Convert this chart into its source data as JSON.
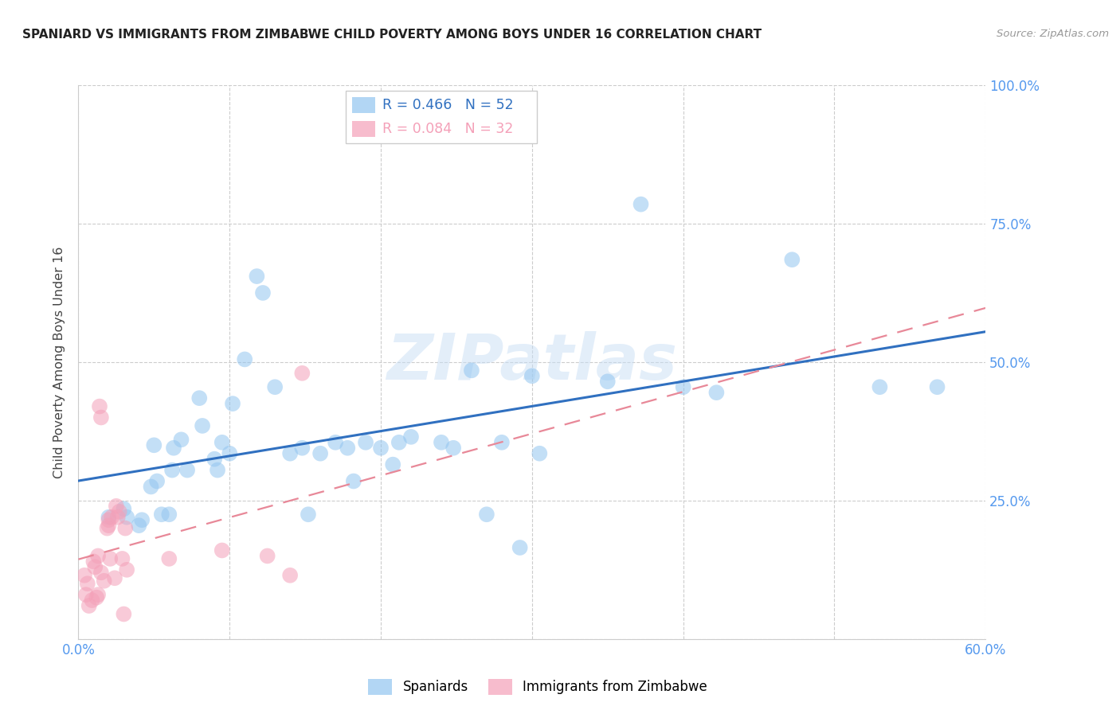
{
  "title": "SPANIARD VS IMMIGRANTS FROM ZIMBABWE CHILD POVERTY AMONG BOYS UNDER 16 CORRELATION CHART",
  "source": "Source: ZipAtlas.com",
  "ylabel": "Child Poverty Among Boys Under 16",
  "xlim": [
    0.0,
    0.6
  ],
  "ylim": [
    0.0,
    1.0
  ],
  "xticks": [
    0.0,
    0.1,
    0.2,
    0.3,
    0.4,
    0.5,
    0.6
  ],
  "yticks": [
    0.0,
    0.25,
    0.5,
    0.75,
    1.0
  ],
  "ytick_labels": [
    "",
    "25.0%",
    "50.0%",
    "75.0%",
    "100.0%"
  ],
  "xtick_labels": [
    "0.0%",
    "",
    "",
    "",
    "",
    "",
    "60.0%"
  ],
  "legend_label_blue": "Spaniards",
  "legend_label_pink": "Immigrants from Zimbabwe",
  "blue_color": "#92c5f0",
  "pink_color": "#f4a0b8",
  "blue_line_color": "#3070c0",
  "pink_line_color": "#e88898",
  "watermark": "ZIPatlas",
  "blue_r": "0.466",
  "blue_n": "52",
  "pink_r": "0.084",
  "pink_n": "32",
  "blue_scatter_x": [
    0.02,
    0.03,
    0.032,
    0.04,
    0.042,
    0.048,
    0.05,
    0.052,
    0.055,
    0.06,
    0.062,
    0.063,
    0.068,
    0.072,
    0.08,
    0.082,
    0.09,
    0.092,
    0.095,
    0.1,
    0.102,
    0.11,
    0.118,
    0.122,
    0.13,
    0.14,
    0.148,
    0.152,
    0.16,
    0.17,
    0.178,
    0.182,
    0.19,
    0.2,
    0.208,
    0.212,
    0.22,
    0.24,
    0.248,
    0.26,
    0.27,
    0.28,
    0.292,
    0.3,
    0.305,
    0.35,
    0.372,
    0.4,
    0.422,
    0.472,
    0.53,
    0.568
  ],
  "blue_scatter_y": [
    0.22,
    0.235,
    0.22,
    0.205,
    0.215,
    0.275,
    0.35,
    0.285,
    0.225,
    0.225,
    0.305,
    0.345,
    0.36,
    0.305,
    0.435,
    0.385,
    0.325,
    0.305,
    0.355,
    0.335,
    0.425,
    0.505,
    0.655,
    0.625,
    0.455,
    0.335,
    0.345,
    0.225,
    0.335,
    0.355,
    0.345,
    0.285,
    0.355,
    0.345,
    0.315,
    0.355,
    0.365,
    0.355,
    0.345,
    0.485,
    0.225,
    0.355,
    0.165,
    0.475,
    0.335,
    0.465,
    0.785,
    0.455,
    0.445,
    0.685,
    0.455,
    0.455
  ],
  "pink_scatter_x": [
    0.004,
    0.005,
    0.006,
    0.007,
    0.009,
    0.01,
    0.011,
    0.012,
    0.013,
    0.013,
    0.014,
    0.015,
    0.015,
    0.017,
    0.019,
    0.02,
    0.02,
    0.021,
    0.022,
    0.024,
    0.025,
    0.026,
    0.027,
    0.029,
    0.03,
    0.031,
    0.032,
    0.06,
    0.095,
    0.125,
    0.14,
    0.148
  ],
  "pink_scatter_y": [
    0.115,
    0.08,
    0.1,
    0.06,
    0.07,
    0.14,
    0.13,
    0.075,
    0.08,
    0.15,
    0.42,
    0.4,
    0.12,
    0.105,
    0.2,
    0.205,
    0.215,
    0.145,
    0.22,
    0.11,
    0.24,
    0.22,
    0.23,
    0.145,
    0.045,
    0.2,
    0.125,
    0.145,
    0.16,
    0.15,
    0.115,
    0.48
  ]
}
